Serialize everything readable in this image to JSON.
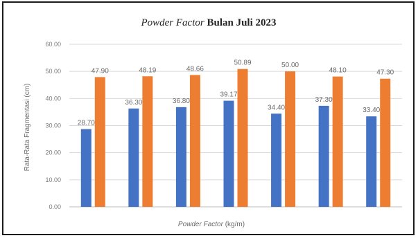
{
  "chart_data": {
    "type": "bar",
    "title_italic": "Powder Factor",
    "title_rest": " Bulan Juli 2023",
    "xlabel_italic": "Powder Factor",
    "xlabel_rest": " (kg/m)",
    "ylabel": "Rata-Rata Fragmentasi (cm)",
    "ylim": [
      0,
      60
    ],
    "yticks": [
      "0.00",
      "10.00",
      "20.00",
      "30.00",
      "40.00",
      "50.00",
      "60.00"
    ],
    "categories": [
      "",
      "",
      "",
      "",
      "",
      "",
      ""
    ],
    "series": [
      {
        "color": "#4472c4",
        "values": [
          28.7,
          36.3,
          36.8,
          39.17,
          34.4,
          37.3,
          33.4
        ],
        "labels": [
          "28.70",
          "36.30",
          "36.80",
          "39.17",
          "34.40",
          "37.30",
          "33.40"
        ]
      },
      {
        "color": "#ed7d31",
        "values": [
          47.9,
          48.19,
          48.66,
          50.89,
          50.0,
          48.1,
          47.3
        ],
        "labels": [
          "47.90",
          "48.19",
          "48.66",
          "50.89",
          "50.00",
          "48.10",
          "47.30"
        ]
      }
    ],
    "grid": true,
    "legend": "none"
  }
}
